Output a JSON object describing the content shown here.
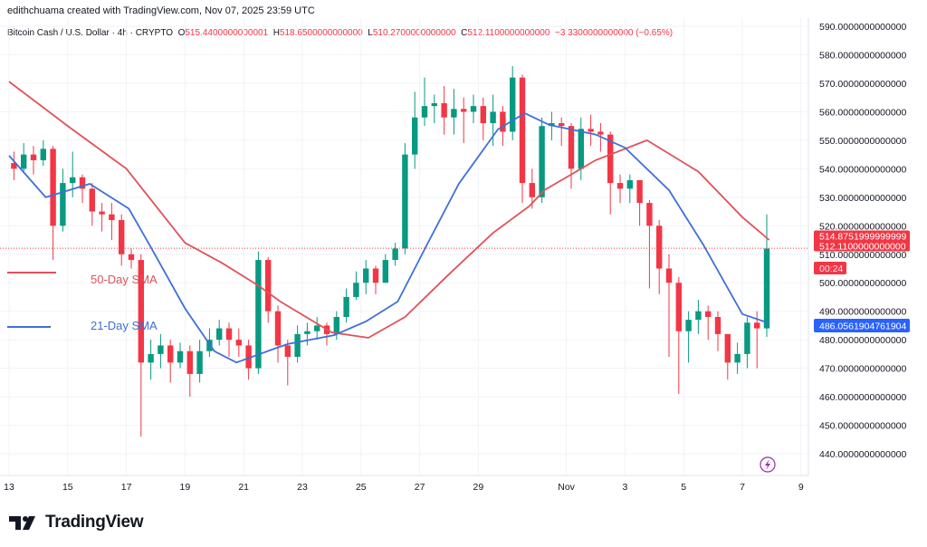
{
  "credit": "edithchuama created with TradingView.com, Nov 07, 2025 23:59 UTC",
  "legend": {
    "symbol": "Bitcoin Cash / U.S. Dollar · 4h · CRYPTO",
    "open_label": "O",
    "open": "515.4400000000001",
    "high_label": "H",
    "high": "518.6500000000000",
    "low_label": "L",
    "low": "510.2700000000000",
    "close_label": "C",
    "close": "512.1100000000000",
    "change": "−3.3300000000000 (−0.65%)"
  },
  "footer": {
    "brand": "TradingView"
  },
  "colors": {
    "up": "#089981",
    "down": "#f23645",
    "sma50": "#e0525a",
    "sma21": "#3f6fd8",
    "grid": "#f0f3fa"
  },
  "chart_data": {
    "type": "candlestick",
    "title": "Bitcoin Cash / U.S. Dollar · 4h · CRYPTO",
    "ylim": [
      435,
      593
    ],
    "y_ticks": [
      "590.0000000000000",
      "580.0000000000000",
      "570.0000000000000",
      "560.0000000000000",
      "550.0000000000000",
      "540.0000000000000",
      "530.0000000000000",
      "520.0000000000000",
      "510.0000000000000",
      "500.0000000000000",
      "490.0000000000000",
      "480.0000000000000",
      "470.0000000000000",
      "460.0000000000000",
      "450.0000000000000",
      "440.0000000000000"
    ],
    "y_tick_values": [
      590,
      580,
      570,
      560,
      550,
      540,
      530,
      520,
      510,
      500,
      490,
      480,
      470,
      460,
      450,
      440
    ],
    "x_ticks": [
      {
        "label": "13",
        "date": "2025-10-13"
      },
      {
        "label": "15",
        "date": "2025-10-15"
      },
      {
        "label": "17",
        "date": "2025-10-17"
      },
      {
        "label": "19",
        "date": "2025-10-19"
      },
      {
        "label": "21",
        "date": "2025-10-21"
      },
      {
        "label": "23",
        "date": "2025-10-23"
      },
      {
        "label": "25",
        "date": "2025-10-25"
      },
      {
        "label": "27",
        "date": "2025-10-27"
      },
      {
        "label": "29",
        "date": "2025-10-29"
      },
      {
        "label": "Nov",
        "date": "2025-11-01"
      },
      {
        "label": "3",
        "date": "2025-11-03"
      },
      {
        "label": "5",
        "date": "2025-11-05"
      },
      {
        "label": "7",
        "date": "2025-11-07"
      },
      {
        "label": "9",
        "date": "2025-11-09"
      }
    ],
    "candles": {
      "start": "2025-10-13T00:00",
      "interval_hours": 8,
      "first_open": 542,
      "close": [
        540,
        545,
        543,
        547,
        520,
        535,
        537,
        533,
        525,
        524,
        522,
        510,
        508,
        472,
        475,
        478,
        472,
        476,
        468,
        476,
        480,
        484,
        480,
        478,
        470,
        508,
        490,
        478,
        474,
        482,
        483,
        485,
        482,
        488,
        495,
        500,
        505,
        500,
        508,
        512,
        545,
        558,
        562,
        563,
        558,
        561,
        560,
        562,
        556,
        560,
        553,
        572,
        535,
        530,
        555,
        556,
        555,
        540,
        554,
        553,
        552,
        535,
        533,
        536,
        528,
        520,
        505,
        500,
        483,
        487,
        490,
        488,
        482,
        472,
        475,
        486,
        484,
        512
      ],
      "high": [
        546,
        549,
        548,
        550,
        548,
        540,
        546,
        538,
        535,
        528,
        528,
        524,
        512,
        510,
        480,
        482,
        480,
        479,
        478,
        480,
        484,
        487,
        486,
        484,
        480,
        511,
        509,
        492,
        480,
        485,
        486,
        488,
        486,
        490,
        498,
        504,
        508,
        506,
        510,
        514,
        549,
        567,
        572,
        566,
        569,
        568,
        565,
        566,
        565,
        566,
        562,
        576,
        573,
        540,
        558,
        560,
        558,
        556,
        558,
        559,
        556,
        553,
        538,
        538,
        535,
        529,
        522,
        510,
        502,
        490,
        494,
        492,
        490,
        482,
        479,
        488,
        490,
        524
      ],
      "low": [
        536,
        539,
        538,
        541,
        508,
        518,
        530,
        528,
        520,
        518,
        515,
        506,
        505,
        446,
        466,
        470,
        465,
        470,
        460,
        465,
        474,
        478,
        474,
        474,
        466,
        468,
        486,
        472,
        464,
        472,
        478,
        480,
        478,
        480,
        486,
        494,
        496,
        496,
        500,
        506,
        510,
        540,
        555,
        556,
        552,
        552,
        549,
        556,
        550,
        548,
        548,
        550,
        528,
        526,
        528,
        550,
        548,
        533,
        536,
        548,
        546,
        524,
        528,
        528,
        520,
        498,
        496,
        474,
        461,
        472,
        482,
        480,
        476,
        466,
        468,
        470,
        470,
        481
      ]
    },
    "series": [
      {
        "name": "50-Day SMA",
        "color": "#e0525a",
        "points": [
          [
            "2025-10-13T00:00",
            570.6
          ],
          [
            "2025-10-15T00:00",
            555
          ],
          [
            "2025-10-17T00:00",
            540
          ],
          [
            "2025-10-19T00:00",
            514
          ],
          [
            "2025-10-20T06:00",
            507
          ],
          [
            "2025-10-21T12:00",
            499
          ],
          [
            "2025-10-22T06:00",
            493.4
          ],
          [
            "2025-10-24T00:00",
            482.6
          ],
          [
            "2025-10-25T06:00",
            480.7
          ],
          [
            "2025-10-26T12:00",
            488
          ],
          [
            "2025-10-28T00:00",
            503
          ],
          [
            "2025-10-29T12:00",
            517.5
          ],
          [
            "2025-10-30T18:00",
            527
          ],
          [
            "2025-10-31T06:00",
            532.5
          ],
          [
            "2025-11-02T00:00",
            543
          ],
          [
            "2025-11-03T18:00",
            550
          ],
          [
            "2025-11-05T12:00",
            539
          ],
          [
            "2025-11-07T00:00",
            523
          ],
          [
            "2025-11-07T22:00",
            515
          ]
        ]
      },
      {
        "name": "21-Day SMA",
        "color": "#3f6fd8",
        "points": [
          [
            "2025-10-13T00:00",
            544.6
          ],
          [
            "2025-10-14T06:00",
            530
          ],
          [
            "2025-10-15T18:00",
            534.7
          ],
          [
            "2025-10-17T02:00",
            526
          ],
          [
            "2025-10-17T20:00",
            512.5
          ],
          [
            "2025-10-19T00:00",
            491
          ],
          [
            "2025-10-20T00:00",
            476
          ],
          [
            "2025-10-20T18:00",
            472
          ],
          [
            "2025-10-22T02:00",
            477
          ],
          [
            "2025-10-22T12:00",
            478.5
          ],
          [
            "2025-10-24T02:00",
            481.6
          ],
          [
            "2025-10-25T04:00",
            486.4
          ],
          [
            "2025-10-26T06:00",
            493.4
          ],
          [
            "2025-10-27T06:00",
            513.4
          ],
          [
            "2025-10-28T08:00",
            534.7
          ],
          [
            "2025-10-29T16:00",
            553.8
          ],
          [
            "2025-10-30T14:00",
            559.5
          ],
          [
            "2025-10-31T10:00",
            555.4
          ],
          [
            "2025-11-02T00:00",
            552
          ],
          [
            "2025-11-03T00:00",
            547.4
          ],
          [
            "2025-11-04T12:00",
            532.5
          ],
          [
            "2025-11-05T16:00",
            513.4
          ],
          [
            "2025-11-07T00:00",
            489
          ],
          [
            "2025-11-07T22:00",
            485.8
          ]
        ]
      }
    ],
    "series_labels": [
      "50-Day SMA",
      "21-Day SMA"
    ],
    "price_tags": [
      {
        "label": "514.8751999999999",
        "value": 514.875,
        "color": "#f23645"
      },
      {
        "label": "512.1100000000000",
        "value": 512.11,
        "color": "#f23645",
        "countdown": "00:24"
      },
      {
        "label": "486.0561904761904",
        "value": 486.056,
        "color": "#2962ff"
      }
    ],
    "grid": true
  }
}
